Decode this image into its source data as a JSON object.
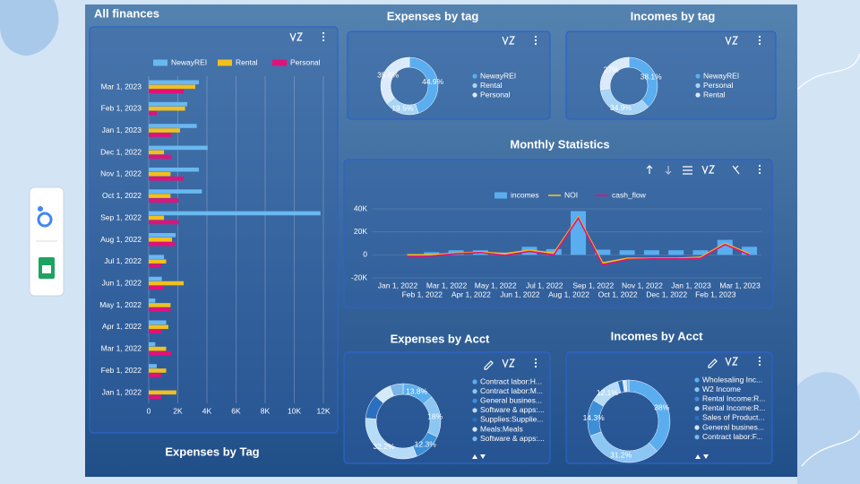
{
  "chart_data": [
    {
      "type": "hbar",
      "title": "All finances",
      "categories": [
        "Mar 1, 2023",
        "Feb 1, 2023",
        "Jan 1, 2023",
        "Dec 1, 2022",
        "Nov 1, 2022",
        "Oct 1, 2022",
        "Sep 1, 2022",
        "Aug 1, 2022",
        "Jul 1, 2022",
        "Jun 1, 2022",
        "May 1, 2022",
        "Apr 1, 2022",
        "Mar 1, 2022",
        "Feb 1, 2022",
        "Jan 1, 2022"
      ],
      "series": [
        {
          "name": "NewayREI",
          "color": "#6ab8f0",
          "values": [
            3450,
            2650,
            3300,
            4050,
            3450,
            3650,
            11800,
            1850,
            1050,
            900,
            450,
            1200,
            450,
            550,
            0
          ]
        },
        {
          "name": "Rental",
          "color": "#f2c01e",
          "values": [
            3200,
            2500,
            2150,
            1050,
            1500,
            1500,
            1050,
            1600,
            1200,
            2400,
            1500,
            1350,
            1200,
            1200,
            1900
          ]
        },
        {
          "name": "Personal",
          "color": "#e0127a",
          "values": [
            2400,
            550,
            1550,
            1550,
            2400,
            2050,
            2050,
            1800,
            850,
            1050,
            1500,
            850,
            1550,
            850,
            850
          ]
        }
      ],
      "xlim": [
        0,
        12000
      ],
      "xticks": [
        0,
        {
          "value": 2000,
          "label": "2K"
        },
        {
          "value": 4000,
          "label": "4K"
        },
        {
          "value": 6000,
          "label": "6K"
        },
        {
          "value": 8000,
          "label": "8K"
        },
        {
          "value": 10000,
          "label": "10K"
        },
        {
          "value": 12000,
          "label": "12K"
        }
      ],
      "grid": true,
      "legend": "top"
    },
    {
      "type": "donut",
      "title": "Expenses by tag",
      "categories": [
        "NewayREI",
        "Rental",
        "Personal"
      ],
      "values": [
        44.9,
        19.5,
        35.6
      ],
      "value_labels": [
        "44.9%",
        "19.5%",
        "35.6%"
      ],
      "colors": [
        "#5aaef0",
        "#a8d4f5",
        "#dbeafa"
      ],
      "legend": "right"
    },
    {
      "type": "donut",
      "title": "Incomes by tag",
      "categories": [
        "NewayREI",
        "Personal",
        "Rental"
      ],
      "values": [
        38.1,
        34.9,
        27
      ],
      "value_labels": [
        "38.1%",
        "34.9%",
        "27%"
      ],
      "colors": [
        "#5aaef0",
        "#a8d4f5",
        "#dbeafa"
      ],
      "legend": "right"
    },
    {
      "type": "combo",
      "title": "Monthly Statistics",
      "categories": [
        "Jan 1, 2022",
        "Feb 1, 2022",
        "Mar 1, 2022",
        "Apr 1, 2022",
        "May 1, 2022",
        "Jun 1, 2022",
        "Jul 1, 2022",
        "Aug 1, 2022",
        "Sep 1, 2022",
        "Oct 1, 2022",
        "Nov 1, 2022",
        "Dec 1, 2022",
        "Jan 1, 2023",
        "Feb 1, 2023",
        "Mar 1, 2023"
      ],
      "series": [
        {
          "name": "incomes",
          "type": "bar",
          "color": "#5aaef0",
          "values": [
            0,
            2300,
            4000,
            4000,
            2000,
            7000,
            5000,
            38000,
            4500,
            4000,
            4000,
            4000,
            4000,
            13000,
            7000
          ]
        },
        {
          "name": "NOI",
          "type": "line",
          "color": "#f2c01e",
          "values": [
            0,
            0,
            1500,
            2500,
            1000,
            4000,
            1500,
            33000,
            -7000,
            -3000,
            -3000,
            -3000,
            -2000,
            10000,
            1000
          ]
        },
        {
          "name": "cash_flow",
          "type": "line",
          "color": "#e0127a",
          "values": [
            -2000,
            -1000,
            1000,
            2000,
            -500,
            3000,
            0,
            32000,
            -9000,
            -4000,
            -3500,
            -3500,
            -3000,
            9000,
            0
          ]
        }
      ],
      "ylim": [
        -20000,
        40000
      ],
      "yticks": [
        {
          "value": -20000,
          "label": "-20K"
        },
        0,
        {
          "value": 20000,
          "label": "20K"
        },
        {
          "value": 40000,
          "label": "40K"
        }
      ],
      "grid": true,
      "legend": "top"
    },
    {
      "type": "donut",
      "title": "Expenses by Acct",
      "categories": [
        "Contract labor:H...",
        "Contract labor:M...",
        "General busines...",
        "Software & apps:...",
        "Supplies:Supplie...",
        "Meals:Meals",
        "Software & apps:..."
      ],
      "values": [
        13.8,
        18,
        12.3,
        32.2,
        10.5,
        7.5,
        5.7
      ],
      "value_labels": [
        "13.8%",
        "18%",
        "12.3%",
        "32.2%",
        null,
        null,
        null
      ],
      "colors": [
        "#5aaef0",
        "#8cc6f3",
        "#3d8fd8",
        "#b6dcf8",
        "#2b6fc0",
        "#d4eafb",
        "#7ab6e8"
      ],
      "legend": "right"
    },
    {
      "type": "donut",
      "title": "Incomes by Acct",
      "categories": [
        "Wholesaling Inc...",
        "W2 Income",
        "Rental Income:R...",
        "Rental Income:R...",
        "Sales of Product...",
        "General busines...",
        "Contract labor:F..."
      ],
      "values": [
        38,
        31.2,
        14.3,
        12.1,
        2,
        1.4,
        1
      ],
      "value_labels": [
        "38%",
        "31.2%",
        "14.3%",
        "12.1%",
        null,
        null,
        null
      ],
      "colors": [
        "#5aaef0",
        "#8cc6f3",
        "#3d8fd8",
        "#b6dcf8",
        "#2b6fc0",
        "#d4eafb",
        "#7ab6e8"
      ],
      "legend": "right"
    }
  ],
  "footer_title": "Expenses by Tag"
}
